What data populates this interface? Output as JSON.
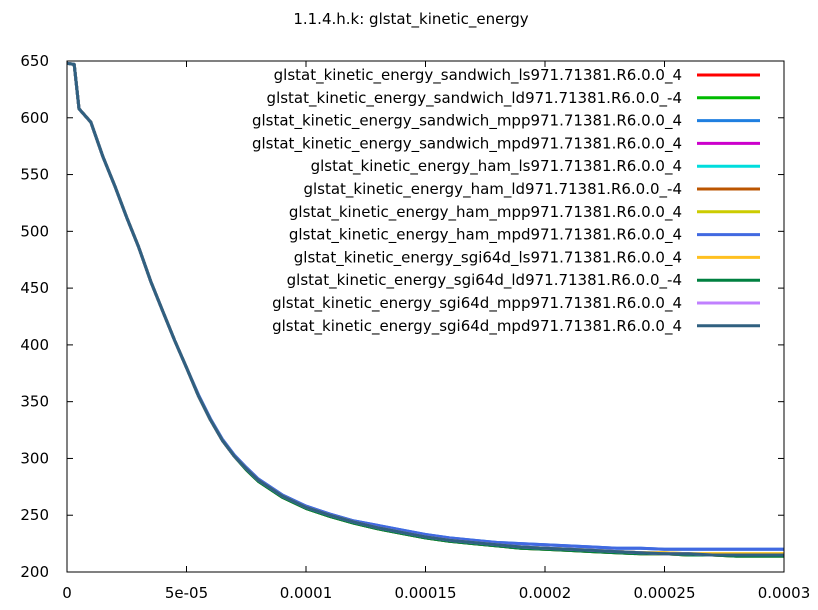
{
  "chart_data": {
    "type": "line",
    "title": "1.1.4.h.k: glstat_kinetic_energy",
    "xlabel": "",
    "ylabel": "",
    "xlim": [
      0,
      0.0003
    ],
    "ylim": [
      200,
      650
    ],
    "x_ticks": [
      0,
      5e-05,
      0.0001,
      0.00015,
      0.0002,
      0.00025,
      0.0003
    ],
    "x_tick_labels": [
      "0",
      "5e-05",
      "0.0001",
      "0.00015",
      "0.0002",
      "0.00025",
      "0.0003"
    ],
    "y_ticks": [
      200,
      250,
      300,
      350,
      400,
      450,
      500,
      550,
      600,
      650
    ],
    "y_tick_labels": [
      "200",
      "250",
      "300",
      "350",
      "400",
      "450",
      "500",
      "550",
      "600",
      "650"
    ],
    "grid": false,
    "legend_position": "top-right",
    "x": [
      0,
      3e-06,
      5e-06,
      1e-05,
      1.5e-05,
      2e-05,
      2.5e-05,
      3e-05,
      3.5e-05,
      4e-05,
      4.5e-05,
      5e-05,
      5.5e-05,
      6e-05,
      6.5e-05,
      7e-05,
      7.5e-05,
      8e-05,
      9e-05,
      0.0001,
      0.00011,
      0.00012,
      0.00013,
      0.00014,
      0.00015,
      0.00016,
      0.00017,
      0.00018,
      0.00019,
      0.0002,
      0.00021,
      0.00022,
      0.00023,
      0.00024,
      0.00025,
      0.00026,
      0.00027,
      0.00028,
      0.00029,
      0.0003
    ],
    "series": [
      {
        "name": "glstat_kinetic_energy_sandwich_ls971.71381.R6.0.0_4",
        "color": "#ff0000",
        "values": [
          648,
          647,
          608,
          596,
          566,
          540,
          512,
          486,
          456,
          430,
          404,
          380,
          355,
          334,
          316,
          302,
          291,
          281,
          267,
          257,
          250,
          244,
          239,
          235,
          231,
          228,
          226,
          224,
          222,
          221,
          220,
          219,
          218,
          217,
          216,
          216,
          215,
          215,
          215,
          215
        ]
      },
      {
        "name": "glstat_kinetic_energy_sandwich_ld971.71381.R6.0.0_-4",
        "color": "#00bb00",
        "values": [
          648,
          647,
          608,
          596,
          566,
          540,
          512,
          486,
          456,
          430,
          404,
          380,
          355,
          334,
          316,
          302,
          290,
          280,
          266,
          256,
          249,
          243,
          238,
          234,
          230,
          227,
          225,
          223,
          221,
          220,
          219,
          218,
          217,
          216,
          216,
          215,
          215,
          214,
          214,
          214
        ]
      },
      {
        "name": "glstat_kinetic_energy_sandwich_mpp971.71381.R6.0.0_4",
        "color": "#1f7fe0",
        "values": [
          648,
          647,
          608,
          596,
          566,
          540,
          512,
          486,
          456,
          430,
          404,
          380,
          356,
          335,
          317,
          303,
          292,
          282,
          268,
          258,
          251,
          245,
          241,
          237,
          233,
          230,
          228,
          226,
          225,
          224,
          223,
          222,
          221,
          221,
          220,
          220,
          220,
          220,
          220,
          220
        ]
      },
      {
        "name": "glstat_kinetic_energy_sandwich_mpd971.71381.R6.0.0_4",
        "color": "#cc00cc",
        "values": [
          648,
          647,
          608,
          596,
          566,
          540,
          512,
          486,
          456,
          430,
          404,
          380,
          355,
          334,
          316,
          302,
          291,
          281,
          267,
          257,
          250,
          244,
          239,
          235,
          231,
          228,
          226,
          224,
          222,
          221,
          220,
          219,
          218,
          217,
          216,
          216,
          215,
          215,
          215,
          215
        ]
      },
      {
        "name": "glstat_kinetic_energy_ham_ls971.71381.R6.0.0_4",
        "color": "#00dddd",
        "values": [
          648,
          647,
          608,
          596,
          566,
          540,
          512,
          486,
          456,
          430,
          404,
          380,
          355,
          334,
          316,
          302,
          291,
          281,
          267,
          257,
          250,
          244,
          239,
          235,
          231,
          228,
          226,
          224,
          222,
          221,
          220,
          219,
          218,
          217,
          216,
          216,
          215,
          215,
          215,
          215
        ]
      },
      {
        "name": "glstat_kinetic_energy_ham_ld971.71381.R6.0.0_-4",
        "color": "#bb5500",
        "values": [
          648,
          647,
          608,
          596,
          566,
          540,
          512,
          486,
          456,
          430,
          404,
          380,
          355,
          334,
          316,
          302,
          290,
          280,
          266,
          256,
          249,
          243,
          238,
          234,
          230,
          227,
          225,
          223,
          221,
          220,
          219,
          218,
          217,
          216,
          216,
          215,
          215,
          214,
          214,
          214
        ]
      },
      {
        "name": "glstat_kinetic_energy_ham_mpp971.71381.R6.0.0_4",
        "color": "#cccc00",
        "values": [
          648,
          647,
          608,
          596,
          566,
          540,
          512,
          486,
          456,
          430,
          404,
          380,
          355,
          334,
          316,
          302,
          291,
          281,
          267,
          257,
          250,
          244,
          239,
          235,
          231,
          228,
          226,
          224,
          222,
          221,
          220,
          219,
          218,
          217,
          217,
          216,
          216,
          216,
          216,
          216
        ]
      },
      {
        "name": "glstat_kinetic_energy_ham_mpd971.71381.R6.0.0_4",
        "color": "#4169e1",
        "values": [
          648,
          647,
          608,
          596,
          566,
          540,
          512,
          486,
          456,
          430,
          404,
          380,
          356,
          335,
          317,
          303,
          292,
          282,
          268,
          258,
          251,
          245,
          241,
          237,
          233,
          230,
          228,
          226,
          225,
          224,
          223,
          222,
          221,
          221,
          220,
          220,
          220,
          220,
          220,
          220
        ]
      },
      {
        "name": "glstat_kinetic_energy_sgi64d_ls971.71381.R6.0.0_4",
        "color": "#ffc020",
        "values": [
          648,
          647,
          608,
          596,
          566,
          540,
          512,
          486,
          456,
          430,
          404,
          380,
          355,
          334,
          316,
          302,
          291,
          281,
          267,
          257,
          250,
          244,
          239,
          235,
          231,
          228,
          226,
          224,
          222,
          221,
          220,
          219,
          218,
          217,
          217,
          216,
          216,
          216,
          216,
          216
        ]
      },
      {
        "name": "glstat_kinetic_energy_sgi64d_ld971.71381.R6.0.0_-4",
        "color": "#008040",
        "values": [
          648,
          647,
          608,
          596,
          566,
          540,
          512,
          486,
          456,
          430,
          404,
          380,
          355,
          334,
          316,
          302,
          290,
          280,
          266,
          256,
          249,
          243,
          238,
          234,
          230,
          227,
          225,
          223,
          221,
          220,
          219,
          218,
          217,
          216,
          216,
          215,
          215,
          214,
          214,
          214
        ]
      },
      {
        "name": "glstat_kinetic_energy_sgi64d_mpp971.71381.R6.0.0_4",
        "color": "#c080ff",
        "values": [
          648,
          647,
          608,
          596,
          566,
          540,
          512,
          486,
          456,
          430,
          404,
          380,
          355,
          334,
          316,
          302,
          291,
          281,
          267,
          257,
          250,
          244,
          239,
          235,
          231,
          228,
          226,
          224,
          222,
          221,
          220,
          219,
          218,
          217,
          216,
          216,
          215,
          215,
          215,
          215
        ]
      },
      {
        "name": "glstat_kinetic_energy_sgi64d_mpd971.71381.R6.0.0_4",
        "color": "#306080",
        "values": [
          648,
          647,
          608,
          596,
          566,
          540,
          512,
          486,
          456,
          430,
          404,
          380,
          355,
          334,
          316,
          302,
          291,
          281,
          267,
          257,
          250,
          244,
          239,
          235,
          231,
          228,
          226,
          224,
          222,
          221,
          220,
          219,
          218,
          217,
          216,
          216,
          215,
          215,
          215,
          215
        ]
      }
    ]
  }
}
